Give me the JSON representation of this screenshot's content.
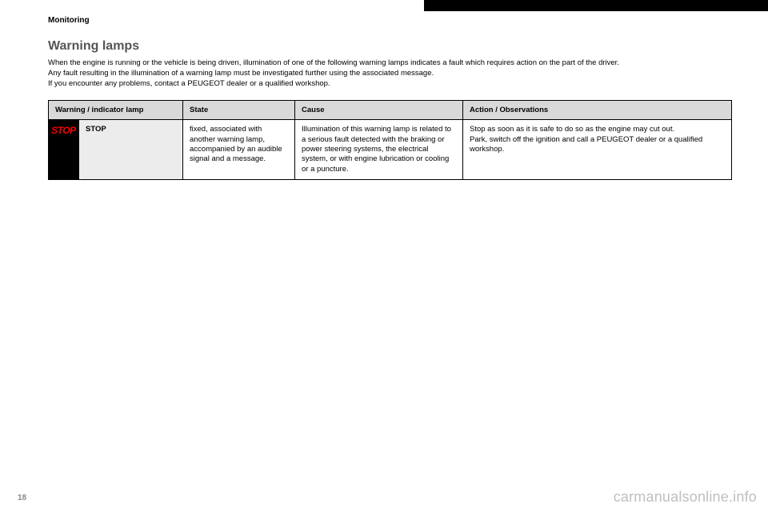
{
  "header": {
    "section": "Monitoring"
  },
  "title": "Warning lamps",
  "intro_line1": "When the engine is running or the vehicle is being driven, illumination of one of the following warning lamps indicates a fault which requires action on the part of the driver.",
  "intro_line2": "Any fault resulting in the illumination of a warning lamp must be investigated further using the associated message.",
  "intro_line3": "If you encounter any problems, contact a PEUGEOT dealer or a qualified workshop.",
  "table": {
    "headers": {
      "lamp": "Warning / indicator lamp",
      "state": "State",
      "cause": "Cause",
      "action": "Action / Observations"
    },
    "row": {
      "icon_text": "STOP",
      "lamp_name": "STOP",
      "state": "fixed, associated with another warning lamp, accompanied by an audible signal and a message.",
      "cause": "Illumination of this warning lamp is related to a serious fault detected with the braking or power steering systems, the electrical system, or with engine lubrication or cooling or a puncture.",
      "action_p1": "Stop as soon as it is safe to do so as the engine may cut out.",
      "action_p2": "Park, switch off the ignition and call a PEUGEOT dealer or a qualified workshop."
    }
  },
  "page_number": "18",
  "watermark": "carmanualsonline.info"
}
